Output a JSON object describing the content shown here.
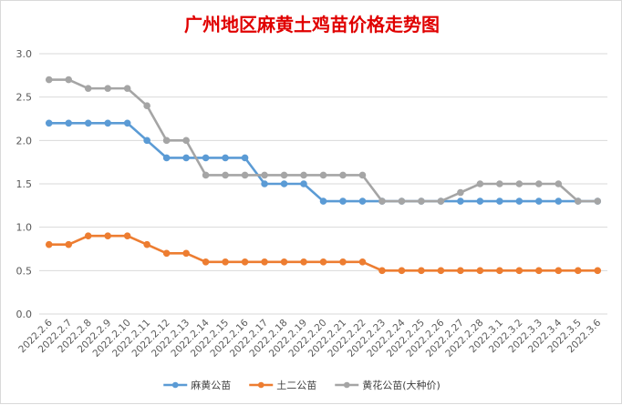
{
  "chart_data": {
    "type": "line",
    "title": "广州地区麻黄土鸡苗价格走势图",
    "xlabel": "",
    "ylabel": "",
    "ylim": [
      0,
      3.0
    ],
    "yticks": [
      "0.0",
      "0.5",
      "1.0",
      "1.5",
      "2.0",
      "2.5",
      "3.0"
    ],
    "grid": true,
    "legend_position": "bottom",
    "categories": [
      "2022.2.6",
      "2022.2.7",
      "2022.2.8",
      "2022.2.9",
      "2022.2.10",
      "2022.2.11",
      "2022.2.12",
      "2022.2.13",
      "2022.2.14",
      "2022.2.15",
      "2022.2.16",
      "2022.2.17",
      "2022.2.18",
      "2022.2.19",
      "2022.2.20",
      "2022.2.21",
      "2022.2.22",
      "2022.2.23",
      "2022.2.24",
      "2022.2.25",
      "2022.2.26",
      "2022.2.27",
      "2022.2.28",
      "2022.3.1",
      "2022.3.2",
      "2022.3.3",
      "2022.3.4",
      "2022.3.5",
      "2022.3.6"
    ],
    "series": [
      {
        "name": "麻黄公苗",
        "color": "#5b9bd5",
        "values": [
          2.2,
          2.2,
          2.2,
          2.2,
          2.2,
          2.0,
          1.8,
          1.8,
          1.8,
          1.8,
          1.8,
          1.5,
          1.5,
          1.5,
          1.3,
          1.3,
          1.3,
          1.3,
          1.3,
          1.3,
          1.3,
          1.3,
          1.3,
          1.3,
          1.3,
          1.3,
          1.3,
          1.3,
          1.3
        ]
      },
      {
        "name": "土二公苗",
        "color": "#ed7d31",
        "values": [
          0.8,
          0.8,
          0.9,
          0.9,
          0.9,
          0.8,
          0.7,
          0.7,
          0.6,
          0.6,
          0.6,
          0.6,
          0.6,
          0.6,
          0.6,
          0.6,
          0.6,
          0.5,
          0.5,
          0.5,
          0.5,
          0.5,
          0.5,
          0.5,
          0.5,
          0.5,
          0.5,
          0.5,
          0.5
        ]
      },
      {
        "name": "黄花公苗(大种价)",
        "color": "#a5a5a5",
        "values": [
          2.7,
          2.7,
          2.6,
          2.6,
          2.6,
          2.4,
          2.0,
          2.0,
          1.6,
          1.6,
          1.6,
          1.6,
          1.6,
          1.6,
          1.6,
          1.6,
          1.6,
          1.3,
          1.3,
          1.3,
          1.3,
          1.4,
          1.5,
          1.5,
          1.5,
          1.5,
          1.5,
          1.3,
          1.3
        ]
      }
    ]
  }
}
